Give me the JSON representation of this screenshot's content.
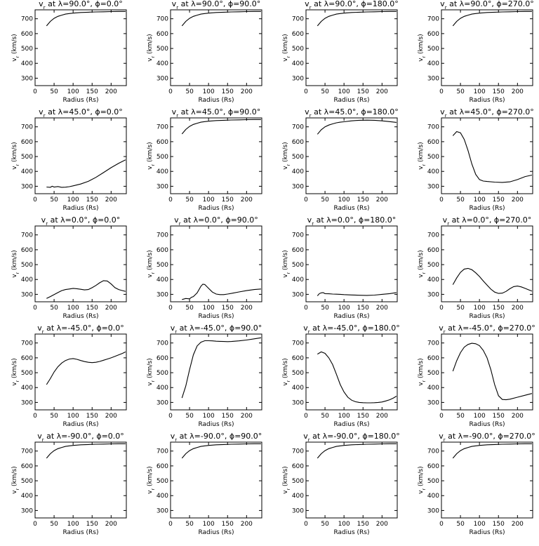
{
  "figure": {
    "shared": {
      "xlabel": "Radius (Rs)",
      "ylabel": "vr (km/s)",
      "xlim": [
        0,
        240
      ],
      "ylim": [
        250,
        760
      ],
      "xticks": [
        0,
        50,
        100,
        150,
        200
      ],
      "yticks": [
        300,
        400,
        500,
        600,
        700
      ]
    }
  },
  "chart_data": [
    {
      "type": "line",
      "title": "vr at λ=90.0°, ϕ=0.0°",
      "x": [
        30,
        40,
        50,
        60,
        70,
        80,
        90,
        100,
        120,
        140,
        160,
        180,
        200,
        220,
        238
      ],
      "y": [
        652,
        682,
        703,
        716,
        724,
        731,
        735,
        738,
        742,
        744,
        746,
        747,
        748,
        749,
        749
      ]
    },
    {
      "type": "line",
      "title": "vr at λ=90.0°, ϕ=90.0°",
      "x": [
        30,
        40,
        50,
        60,
        70,
        80,
        90,
        100,
        120,
        140,
        160,
        180,
        200,
        220,
        238
      ],
      "y": [
        652,
        682,
        703,
        716,
        724,
        731,
        735,
        738,
        742,
        744,
        746,
        747,
        748,
        749,
        749
      ]
    },
    {
      "type": "line",
      "title": "vr at λ=90.0°, ϕ=180.0°",
      "x": [
        30,
        40,
        50,
        60,
        70,
        80,
        90,
        100,
        120,
        140,
        160,
        180,
        200,
        220,
        238
      ],
      "y": [
        652,
        682,
        703,
        716,
        724,
        731,
        735,
        738,
        742,
        744,
        746,
        747,
        748,
        749,
        749
      ]
    },
    {
      "type": "line",
      "title": "vr at λ=90.0°, ϕ=270.0°",
      "x": [
        30,
        40,
        50,
        60,
        70,
        80,
        90,
        100,
        120,
        140,
        160,
        180,
        200,
        220,
        238
      ],
      "y": [
        652,
        682,
        703,
        716,
        724,
        731,
        735,
        738,
        742,
        744,
        746,
        747,
        748,
        749,
        749
      ]
    },
    {
      "type": "line",
      "title": "vr at λ=45.0°, ϕ=0.0°",
      "x": [
        30,
        40,
        45,
        50,
        60,
        70,
        80,
        90,
        100,
        120,
        140,
        160,
        180,
        200,
        220,
        238
      ],
      "y": [
        295,
        293,
        300,
        295,
        298,
        293,
        294,
        297,
        303,
        315,
        333,
        360,
        392,
        425,
        455,
        478
      ]
    },
    {
      "type": "line",
      "title": "vr at λ=45.0°, ϕ=90.0°",
      "x": [
        30,
        40,
        50,
        60,
        70,
        80,
        90,
        100,
        120,
        140,
        160,
        180,
        200,
        220,
        238
      ],
      "y": [
        652,
        682,
        703,
        716,
        724,
        731,
        735,
        738,
        742,
        744,
        746,
        747,
        748,
        749,
        749
      ]
    },
    {
      "type": "line",
      "title": "vr at λ=45.0°, ϕ=180.0°",
      "x": [
        30,
        40,
        50,
        60,
        70,
        80,
        90,
        100,
        120,
        140,
        160,
        180,
        200,
        220,
        238
      ],
      "y": [
        650,
        680,
        700,
        712,
        720,
        727,
        731,
        734,
        740,
        744,
        745,
        744,
        740,
        735,
        730
      ]
    },
    {
      "type": "line",
      "title": "vr at λ=45.0°, ϕ=270.0°",
      "x": [
        30,
        40,
        50,
        60,
        70,
        80,
        90,
        100,
        110,
        120,
        140,
        160,
        180,
        200,
        220,
        238
      ],
      "y": [
        640,
        668,
        660,
        615,
        540,
        450,
        380,
        345,
        335,
        332,
        328,
        326,
        330,
        345,
        365,
        375
      ]
    },
    {
      "type": "line",
      "title": "vr at λ=0.0°, ϕ=0.0°",
      "x": [
        30,
        40,
        50,
        60,
        70,
        80,
        90,
        100,
        110,
        120,
        130,
        140,
        150,
        160,
        170,
        180,
        190,
        200,
        210,
        220,
        230,
        238
      ],
      "y": [
        272,
        285,
        298,
        312,
        325,
        332,
        336,
        340,
        338,
        334,
        330,
        332,
        345,
        360,
        378,
        392,
        390,
        370,
        345,
        332,
        325,
        320
      ]
    },
    {
      "type": "line",
      "title": "vr at λ=0.0°, ϕ=90.0°",
      "x": [
        30,
        40,
        50,
        55,
        60,
        70,
        80,
        85,
        90,
        100,
        110,
        120,
        130,
        140,
        150,
        160,
        180,
        200,
        220,
        238
      ],
      "y": [
        265,
        272,
        270,
        280,
        285,
        310,
        355,
        368,
        366,
        340,
        315,
        302,
        298,
        298,
        302,
        306,
        316,
        325,
        332,
        336
      ]
    },
    {
      "type": "line",
      "title": "vr at λ=0.0°, ϕ=180.0°",
      "x": [
        30,
        35,
        40,
        45,
        50,
        60,
        70,
        80,
        90,
        100,
        120,
        140,
        160,
        180,
        200,
        220,
        238
      ],
      "y": [
        290,
        305,
        310,
        312,
        305,
        304,
        302,
        301,
        300,
        298,
        296,
        294,
        293,
        295,
        300,
        305,
        312
      ]
    },
    {
      "type": "line",
      "title": "vr at λ=0.0°, ϕ=270.0°",
      "x": [
        30,
        40,
        50,
        60,
        70,
        80,
        90,
        100,
        110,
        120,
        130,
        140,
        150,
        160,
        170,
        180,
        190,
        200,
        210,
        220,
        230,
        238
      ],
      "y": [
        365,
        410,
        448,
        470,
        475,
        466,
        445,
        420,
        390,
        362,
        335,
        315,
        306,
        308,
        320,
        338,
        352,
        356,
        350,
        340,
        330,
        322
      ]
    },
    {
      "type": "line",
      "title": "vr at λ=-45.0°, ϕ=0.0°",
      "x": [
        30,
        40,
        50,
        60,
        70,
        80,
        90,
        100,
        110,
        120,
        130,
        140,
        150,
        160,
        170,
        180,
        190,
        200,
        210,
        220,
        230,
        238
      ],
      "y": [
        420,
        460,
        505,
        540,
        565,
        582,
        592,
        595,
        590,
        582,
        575,
        570,
        568,
        570,
        576,
        584,
        592,
        600,
        610,
        620,
        630,
        640
      ]
    },
    {
      "type": "line",
      "title": "vr at λ=-45.0°, ϕ=90.0°",
      "x": [
        30,
        40,
        50,
        60,
        70,
        80,
        90,
        100,
        110,
        120,
        130,
        140,
        150,
        160,
        180,
        200,
        220,
        238
      ],
      "y": [
        330,
        410,
        520,
        620,
        680,
        705,
        715,
        715,
        714,
        712,
        711,
        710,
        709,
        710,
        714,
        720,
        728,
        735
      ]
    },
    {
      "type": "line",
      "title": "vr at λ=-45.0°, ϕ=180.0°",
      "x": [
        30,
        40,
        50,
        60,
        70,
        80,
        90,
        100,
        110,
        120,
        130,
        140,
        150,
        160,
        170,
        180,
        190,
        200,
        210,
        220,
        230,
        238
      ],
      "y": [
        625,
        640,
        630,
        600,
        555,
        490,
        420,
        370,
        335,
        315,
        305,
        300,
        298,
        297,
        297,
        298,
        300,
        303,
        310,
        318,
        330,
        342
      ]
    },
    {
      "type": "line",
      "title": "vr at λ=-45.0°, ϕ=270.0°",
      "x": [
        30,
        40,
        50,
        60,
        70,
        80,
        90,
        100,
        110,
        120,
        130,
        140,
        150,
        160,
        170,
        180,
        200,
        220,
        238
      ],
      "y": [
        510,
        580,
        635,
        672,
        690,
        698,
        695,
        682,
        650,
        600,
        520,
        420,
        345,
        320,
        318,
        322,
        335,
        348,
        360
      ]
    },
    {
      "type": "line",
      "title": "vr at λ=-90.0°, ϕ=0.0°",
      "x": [
        30,
        40,
        50,
        60,
        70,
        80,
        90,
        100,
        120,
        140,
        160,
        180,
        200,
        220,
        238
      ],
      "y": [
        652,
        682,
        703,
        716,
        724,
        731,
        735,
        738,
        742,
        744,
        746,
        747,
        748,
        749,
        749
      ]
    },
    {
      "type": "line",
      "title": "vr at λ=-90.0°, ϕ=90.0°",
      "x": [
        30,
        40,
        50,
        60,
        70,
        80,
        90,
        100,
        120,
        140,
        160,
        180,
        200,
        220,
        238
      ],
      "y": [
        652,
        682,
        703,
        716,
        724,
        731,
        735,
        738,
        742,
        744,
        746,
        747,
        748,
        749,
        749
      ]
    },
    {
      "type": "line",
      "title": "vr at λ=-90.0°, ϕ=180.0°",
      "x": [
        30,
        40,
        50,
        60,
        70,
        80,
        90,
        100,
        120,
        140,
        160,
        180,
        200,
        220,
        238
      ],
      "y": [
        652,
        682,
        703,
        716,
        724,
        731,
        735,
        738,
        742,
        744,
        746,
        747,
        748,
        749,
        749
      ]
    },
    {
      "type": "line",
      "title": "vr at λ=-90.0°, ϕ=270.0°",
      "x": [
        30,
        40,
        50,
        60,
        70,
        80,
        90,
        100,
        120,
        140,
        160,
        180,
        200,
        220,
        238
      ],
      "y": [
        652,
        682,
        703,
        716,
        724,
        731,
        735,
        738,
        742,
        744,
        746,
        747,
        748,
        749,
        749
      ]
    }
  ]
}
